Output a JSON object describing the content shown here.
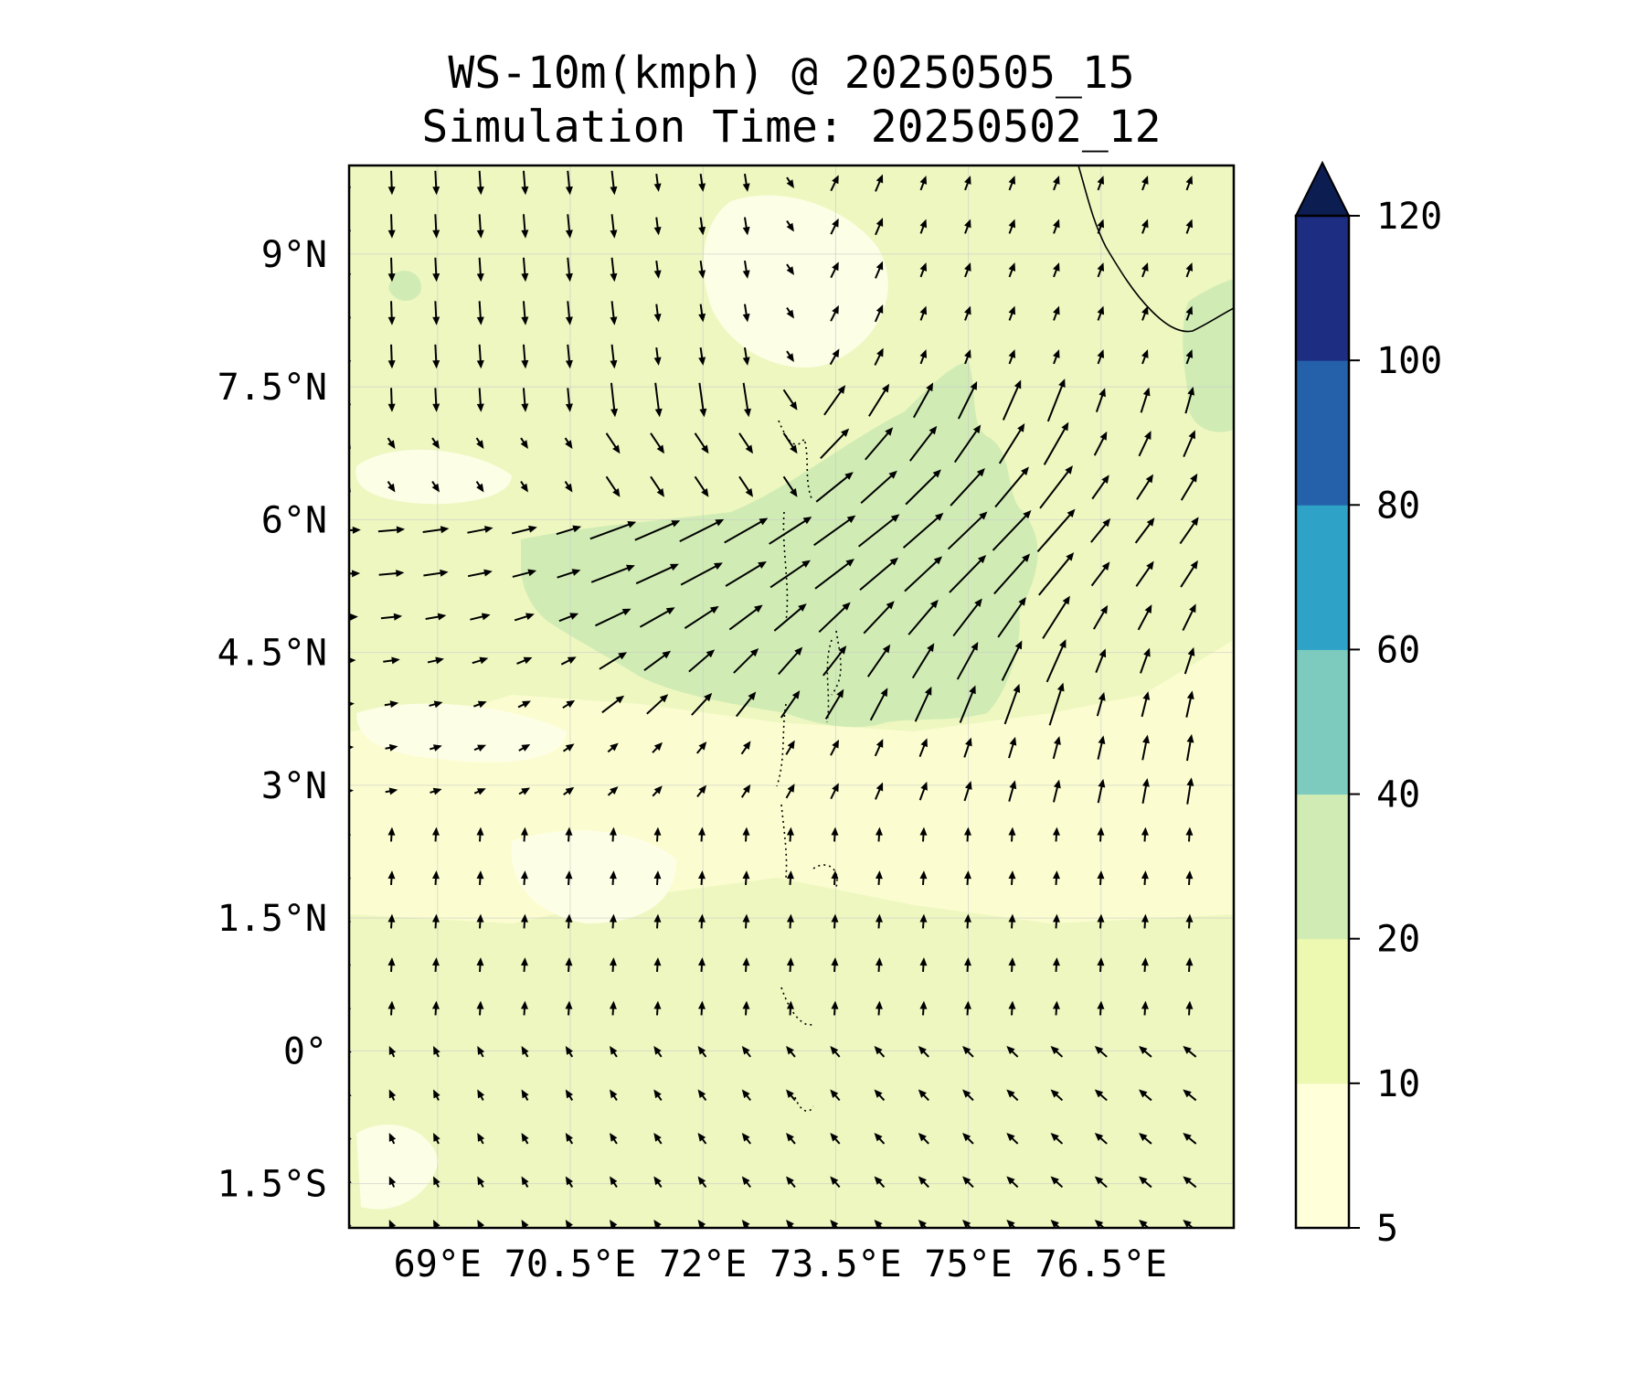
{
  "title": {
    "line1": "WS-10m(kmph) @ 20250505_15",
    "line2": "Simulation Time: 20250502_12"
  },
  "map": {
    "lon_range": [
      68.0,
      78.0
    ],
    "lat_range": [
      -2.0,
      10.0
    ],
    "x_ticks": [
      {
        "value": 69.0,
        "label": "69°E"
      },
      {
        "value": 70.5,
        "label": "70.5°E"
      },
      {
        "value": 72.0,
        "label": "72°E"
      },
      {
        "value": 73.5,
        "label": "73.5°E"
      },
      {
        "value": 75.0,
        "label": "75°E"
      },
      {
        "value": 76.5,
        "label": "76.5°E"
      }
    ],
    "y_ticks": [
      {
        "value": 9.0,
        "label": "9°N"
      },
      {
        "value": 7.5,
        "label": "7.5°N"
      },
      {
        "value": 6.0,
        "label": "6°N"
      },
      {
        "value": 4.5,
        "label": "4.5°N"
      },
      {
        "value": 3.0,
        "label": "3°N"
      },
      {
        "value": 1.5,
        "label": "1.5°N"
      },
      {
        "value": 0.0,
        "label": "0°"
      },
      {
        "value": -1.5,
        "label": "1.5°S"
      }
    ],
    "grid": true,
    "coastline_color": "#000000"
  },
  "colorbar": {
    "levels": [
      5,
      10,
      20,
      40,
      60,
      80,
      100,
      120
    ],
    "colors": [
      "#ffffd9",
      "#edf8b1",
      "#d0ecb4",
      "#7ccbbe",
      "#2fa3c7",
      "#2461aa",
      "#1d2d82"
    ],
    "extend_color": "#0c1d52",
    "extend": "max",
    "labels": [
      "5",
      "10",
      "20",
      "40",
      "60",
      "80",
      "100",
      "120"
    ]
  },
  "chart_data": {
    "type": "heatmap",
    "variable": "WS-10m(kmph)",
    "valid_time": "20250505_15",
    "simulation_time": "20250502_12",
    "overlay": "wind vectors",
    "x": "longitude (°E)",
    "y": "latitude (°N)",
    "xlim": [
      68.0,
      78.0
    ],
    "ylim": [
      -2.0,
      10.0
    ],
    "colorbar_range": [
      5,
      120
    ]
  }
}
